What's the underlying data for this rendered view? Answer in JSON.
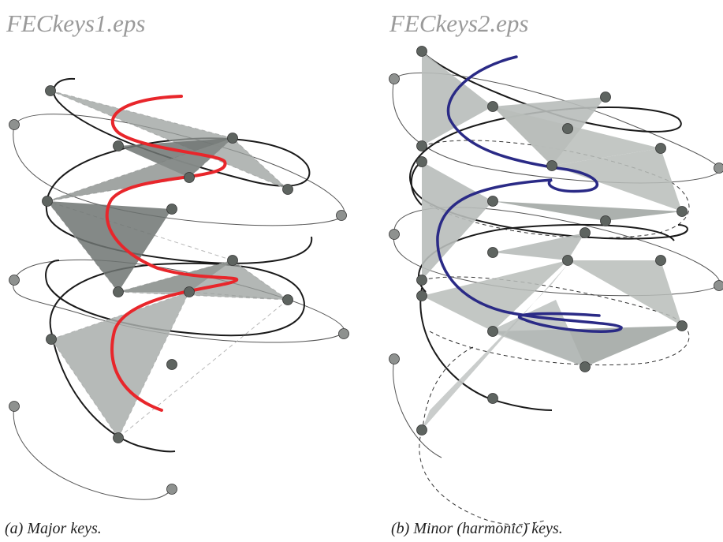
{
  "panels": [
    {
      "file_label": "FECkeys1.eps",
      "caption": "(a) Major keys.",
      "curve_color": "#e8262b"
    },
    {
      "file_label": "FECkeys2.eps",
      "caption": "(b) Minor (harmonic) keys.",
      "curve_color": "#2a2a86"
    }
  ],
  "colors": {
    "node_fill": "#5e6460",
    "node_fill_light": "#8e918f",
    "triangle_light": "#b8bdba",
    "triangle_dark": "#6e7472",
    "spiral_dark": "#1a1a1a",
    "spiral_light": "#555555"
  }
}
